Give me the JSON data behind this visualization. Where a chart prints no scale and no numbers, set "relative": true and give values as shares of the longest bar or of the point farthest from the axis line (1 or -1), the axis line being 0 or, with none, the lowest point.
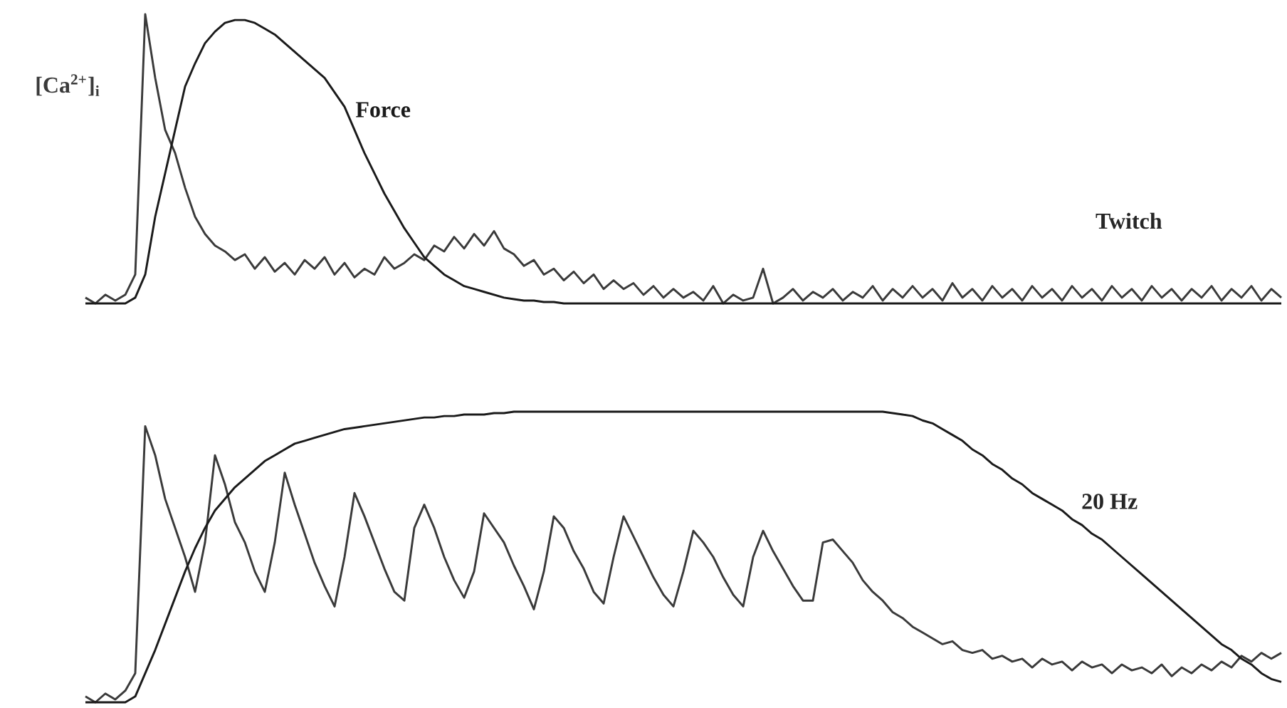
{
  "chart_data": [
    {
      "type": "line",
      "relative": true,
      "categories": [
        null,
        null,
        null,
        null,
        null,
        null,
        null,
        null,
        null,
        null,
        null,
        null,
        null,
        null,
        null,
        null,
        null,
        null,
        null,
        null,
        null,
        null,
        null,
        null,
        null,
        null,
        null,
        null,
        null,
        null,
        null,
        null,
        null,
        null,
        null,
        null,
        null,
        null,
        null,
        null,
        null,
        null,
        null,
        null,
        null,
        null,
        null,
        null,
        null,
        null,
        null,
        null,
        null,
        null,
        null,
        null,
        null,
        null,
        null,
        null,
        null,
        null,
        null,
        null,
        null,
        null,
        null,
        null,
        null,
        null,
        null,
        null,
        null,
        null,
        null,
        null,
        null,
        null,
        null,
        null,
        null,
        null,
        null,
        null,
        null,
        null,
        null,
        null,
        null,
        null,
        null,
        null,
        null,
        null,
        null,
        null,
        null,
        null,
        null,
        null,
        null,
        null,
        null,
        null,
        null,
        null,
        null,
        null,
        null,
        null,
        null,
        null,
        null,
        null,
        null,
        null,
        null,
        null,
        null,
        null,
        null
      ],
      "series": [
        {
          "name": "[Ca$^{2+}$]$_{i}$",
          "color": "#3a3a3a",
          "values": [
            0.02,
            0.0,
            0.03,
            0.01,
            0.03,
            0.1,
            1.0,
            0.78,
            0.6,
            0.52,
            0.4,
            0.3,
            0.24,
            0.2,
            0.18,
            0.15,
            0.17,
            0.12,
            0.16,
            0.11,
            0.14,
            0.1,
            0.15,
            0.12,
            0.16,
            0.1,
            0.14,
            0.09,
            0.12,
            0.1,
            0.16,
            0.12,
            0.14,
            0.17,
            0.15,
            0.2,
            0.18,
            0.23,
            0.19,
            0.24,
            0.2,
            0.25,
            0.19,
            0.17,
            0.13,
            0.15,
            0.1,
            0.12,
            0.08,
            0.11,
            0.07,
            0.1,
            0.05,
            0.08,
            0.05,
            0.07,
            0.03,
            0.06,
            0.02,
            0.05,
            0.02,
            0.04,
            0.01,
            0.06,
            0.0,
            0.03,
            0.01,
            0.02,
            0.12,
            0.0,
            0.02,
            0.05,
            0.01,
            0.04,
            0.02,
            0.05,
            0.01,
            0.04,
            0.02,
            0.06,
            0.01,
            0.05,
            0.02,
            0.06,
            0.02,
            0.05,
            0.01,
            0.07,
            0.02,
            0.05,
            0.01,
            0.06,
            0.02,
            0.05,
            0.01,
            0.06,
            0.02,
            0.05,
            0.01,
            0.06,
            0.02,
            0.05,
            0.01,
            0.06,
            0.02,
            0.05,
            0.01,
            0.06,
            0.02,
            0.05,
            0.01,
            0.05,
            0.02,
            0.06,
            0.01,
            0.05,
            0.02,
            0.06,
            0.01,
            0.05,
            0.02
          ]
        },
        {
          "name": "Force",
          "color": "#1a1a1a",
          "values": [
            0,
            0,
            0,
            0,
            0,
            0.02,
            0.1,
            0.3,
            0.45,
            0.6,
            0.75,
            0.83,
            0.9,
            0.94,
            0.97,
            0.98,
            0.98,
            0.97,
            0.95,
            0.93,
            0.9,
            0.87,
            0.84,
            0.81,
            0.78,
            0.73,
            0.68,
            0.6,
            0.52,
            0.45,
            0.38,
            0.32,
            0.26,
            0.21,
            0.16,
            0.13,
            0.1,
            0.08,
            0.06,
            0.05,
            0.04,
            0.03,
            0.02,
            0.015,
            0.01,
            0.01,
            0.005,
            0.005,
            0,
            0,
            0,
            0,
            0,
            0,
            0,
            0,
            0,
            0,
            0,
            0,
            0,
            0,
            0,
            0,
            0,
            0,
            0,
            0,
            0,
            0,
            0,
            0,
            0,
            0,
            0,
            0,
            0,
            0,
            0,
            0,
            0,
            0,
            0,
            0,
            0,
            0,
            0,
            0,
            0,
            0,
            0,
            0,
            0,
            0,
            0,
            0,
            0,
            0,
            0,
            0,
            0,
            0,
            0,
            0,
            0,
            0,
            0,
            0,
            0,
            0,
            0,
            0,
            0,
            0,
            0,
            0,
            0,
            0,
            0,
            0,
            0
          ]
        }
      ],
      "annotations": [
        "Twitch"
      ]
    },
    {
      "type": "line",
      "relative": true,
      "categories": [
        null,
        null,
        null,
        null,
        null,
        null,
        null,
        null,
        null,
        null,
        null,
        null,
        null,
        null,
        null,
        null,
        null,
        null,
        null,
        null,
        null,
        null,
        null,
        null,
        null,
        null,
        null,
        null,
        null,
        null,
        null,
        null,
        null,
        null,
        null,
        null,
        null,
        null,
        null,
        null,
        null,
        null,
        null,
        null,
        null,
        null,
        null,
        null,
        null,
        null,
        null,
        null,
        null,
        null,
        null,
        null,
        null,
        null,
        null,
        null,
        null,
        null,
        null,
        null,
        null,
        null,
        null,
        null,
        null,
        null,
        null,
        null,
        null,
        null,
        null,
        null,
        null,
        null,
        null,
        null,
        null,
        null,
        null,
        null,
        null,
        null,
        null,
        null,
        null,
        null,
        null,
        null,
        null,
        null,
        null,
        null,
        null,
        null,
        null,
        null,
        null,
        null,
        null,
        null,
        null,
        null,
        null,
        null,
        null,
        null,
        null,
        null,
        null,
        null,
        null,
        null,
        null,
        null,
        null,
        null,
        null
      ],
      "series": [
        {
          "color": "#3a3a3a",
          "values": [
            0.02,
            0.0,
            0.03,
            0.01,
            0.04,
            0.1,
            0.95,
            0.85,
            0.7,
            0.6,
            0.5,
            0.38,
            0.55,
            0.85,
            0.75,
            0.62,
            0.55,
            0.45,
            0.38,
            0.55,
            0.79,
            0.68,
            0.58,
            0.48,
            0.4,
            0.33,
            0.5,
            0.72,
            0.64,
            0.55,
            0.46,
            0.38,
            0.35,
            0.6,
            0.68,
            0.6,
            0.5,
            0.42,
            0.36,
            0.45,
            0.65,
            0.6,
            0.55,
            0.47,
            0.4,
            0.32,
            0.45,
            0.64,
            0.6,
            0.52,
            0.46,
            0.38,
            0.34,
            0.5,
            0.64,
            0.57,
            0.5,
            0.43,
            0.37,
            0.33,
            0.45,
            0.59,
            0.55,
            0.5,
            0.43,
            0.37,
            0.33,
            0.5,
            0.59,
            0.52,
            0.46,
            0.4,
            0.35,
            0.35,
            0.55,
            0.56,
            0.52,
            0.48,
            0.42,
            0.38,
            0.35,
            0.31,
            0.29,
            0.26,
            0.24,
            0.22,
            0.2,
            0.21,
            0.18,
            0.17,
            0.18,
            0.15,
            0.16,
            0.14,
            0.15,
            0.12,
            0.15,
            0.13,
            0.14,
            0.11,
            0.14,
            0.12,
            0.13,
            0.1,
            0.13,
            0.11,
            0.12,
            0.1,
            0.13,
            0.09,
            0.12,
            0.1,
            0.13,
            0.11,
            0.14,
            0.12,
            0.16,
            0.14,
            0.17,
            0.15,
            0.17
          ]
        },
        {
          "color": "#1a1a1a",
          "values": [
            0,
            0,
            0,
            0,
            0,
            0.02,
            0.1,
            0.18,
            0.27,
            0.36,
            0.45,
            0.53,
            0.6,
            0.66,
            0.7,
            0.74,
            0.77,
            0.8,
            0.83,
            0.85,
            0.87,
            0.89,
            0.9,
            0.91,
            0.92,
            0.93,
            0.94,
            0.945,
            0.95,
            0.955,
            0.96,
            0.965,
            0.97,
            0.975,
            0.98,
            0.98,
            0.985,
            0.985,
            0.99,
            0.99,
            0.99,
            0.995,
            0.995,
            1,
            1,
            1,
            1,
            1,
            1,
            1,
            1,
            1,
            1,
            1,
            1,
            1,
            1,
            1,
            1,
            1,
            1,
            1,
            1,
            1,
            1,
            1,
            1,
            1,
            1,
            1,
            1,
            1,
            1,
            1,
            1,
            1,
            1,
            1,
            1,
            1,
            1,
            0.995,
            0.99,
            0.985,
            0.97,
            0.96,
            0.94,
            0.92,
            0.9,
            0.87,
            0.85,
            0.82,
            0.8,
            0.77,
            0.75,
            0.72,
            0.7,
            0.68,
            0.66,
            0.63,
            0.61,
            0.58,
            0.56,
            0.53,
            0.5,
            0.47,
            0.44,
            0.41,
            0.38,
            0.35,
            0.32,
            0.29,
            0.26,
            0.23,
            0.2,
            0.18,
            0.15,
            0.13,
            0.1,
            0.08,
            0.07
          ]
        }
      ],
      "annotations": [
        "20 Hz"
      ]
    }
  ]
}
